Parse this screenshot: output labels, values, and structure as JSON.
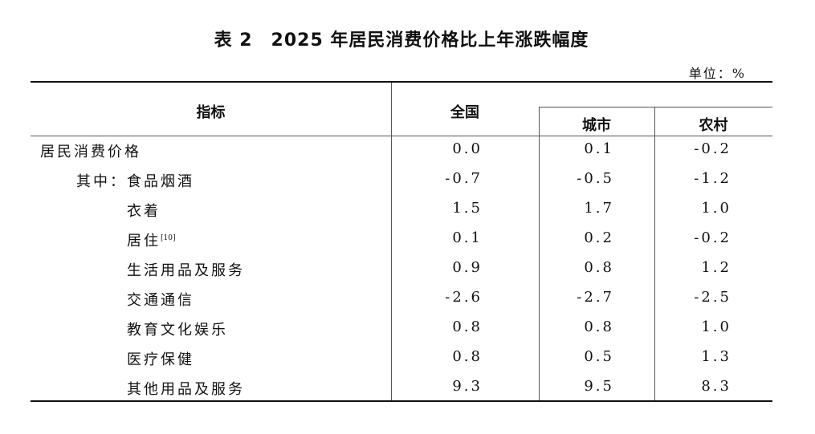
{
  "title": "表 2　2025 年居民消费价格比上年涨跌幅度",
  "unit": "单位：%",
  "headers": {
    "indicator": "指标",
    "national": "全国",
    "urban": "城市",
    "rural": "农村"
  },
  "rows": [
    {
      "prefix": "",
      "label": "居民消费价格",
      "sup": "",
      "national": "0.0",
      "urban": "0.1",
      "rural": "-0.2"
    },
    {
      "prefix": "其中：",
      "label": "食品烟酒",
      "sup": "",
      "national": "-0.7",
      "urban": "-0.5",
      "rural": "-1.2"
    },
    {
      "prefix": "",
      "label": "衣着",
      "sup": "",
      "national": "1.5",
      "urban": "1.7",
      "rural": "1.0"
    },
    {
      "prefix": "",
      "label": "居住",
      "sup": "[10]",
      "national": "0.1",
      "urban": "0.2",
      "rural": "-0.2"
    },
    {
      "prefix": "",
      "label": "生活用品及服务",
      "sup": "",
      "national": "0.9",
      "urban": "0.8",
      "rural": "1.2"
    },
    {
      "prefix": "",
      "label": "交通通信",
      "sup": "",
      "national": "-2.6",
      "urban": "-2.7",
      "rural": "-2.5"
    },
    {
      "prefix": "",
      "label": "教育文化娱乐",
      "sup": "",
      "national": "0.8",
      "urban": "0.8",
      "rural": "1.0"
    },
    {
      "prefix": "",
      "label": "医疗保健",
      "sup": "",
      "national": "0.8",
      "urban": "0.5",
      "rural": "1.3"
    },
    {
      "prefix": "",
      "label": "其他用品及服务",
      "sup": "",
      "national": "9.3",
      "urban": "9.5",
      "rural": "8.3"
    }
  ]
}
